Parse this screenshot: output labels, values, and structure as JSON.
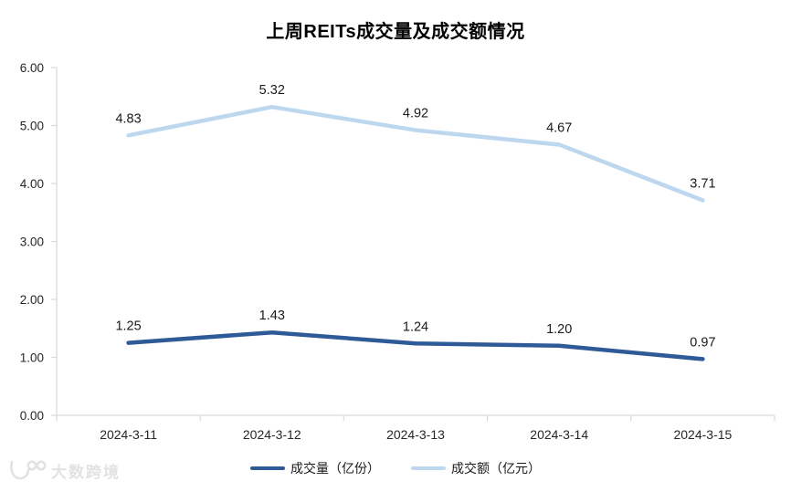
{
  "chart_data": {
    "type": "line",
    "title": "上周REITs成交量及成交额情况",
    "categories": [
      "2024-3-11",
      "2024-3-12",
      "2024-3-13",
      "2024-3-14",
      "2024-3-15"
    ],
    "series": [
      {
        "name": "成交量（亿份）",
        "values": [
          1.25,
          1.43,
          1.24,
          1.2,
          0.97
        ],
        "color": "#2e5b97"
      },
      {
        "name": "成交额（亿元）",
        "values": [
          4.83,
          5.32,
          4.92,
          4.67,
          3.71
        ],
        "color": "#bdd7ee"
      }
    ],
    "ylim": [
      0,
      6
    ],
    "y_tick_labels": [
      "0.00",
      "1.00",
      "2.00",
      "3.00",
      "4.00",
      "5.00",
      "6.00"
    ],
    "xlabel": "",
    "ylabel": "",
    "grid": false,
    "data_labels": true,
    "legend_position": "bottom",
    "axis_color": "#d9d9d9",
    "tick_label_color": "#262626",
    "data_label_color": "#1a1a1a"
  },
  "watermark": {
    "text": "大数跨境"
  }
}
